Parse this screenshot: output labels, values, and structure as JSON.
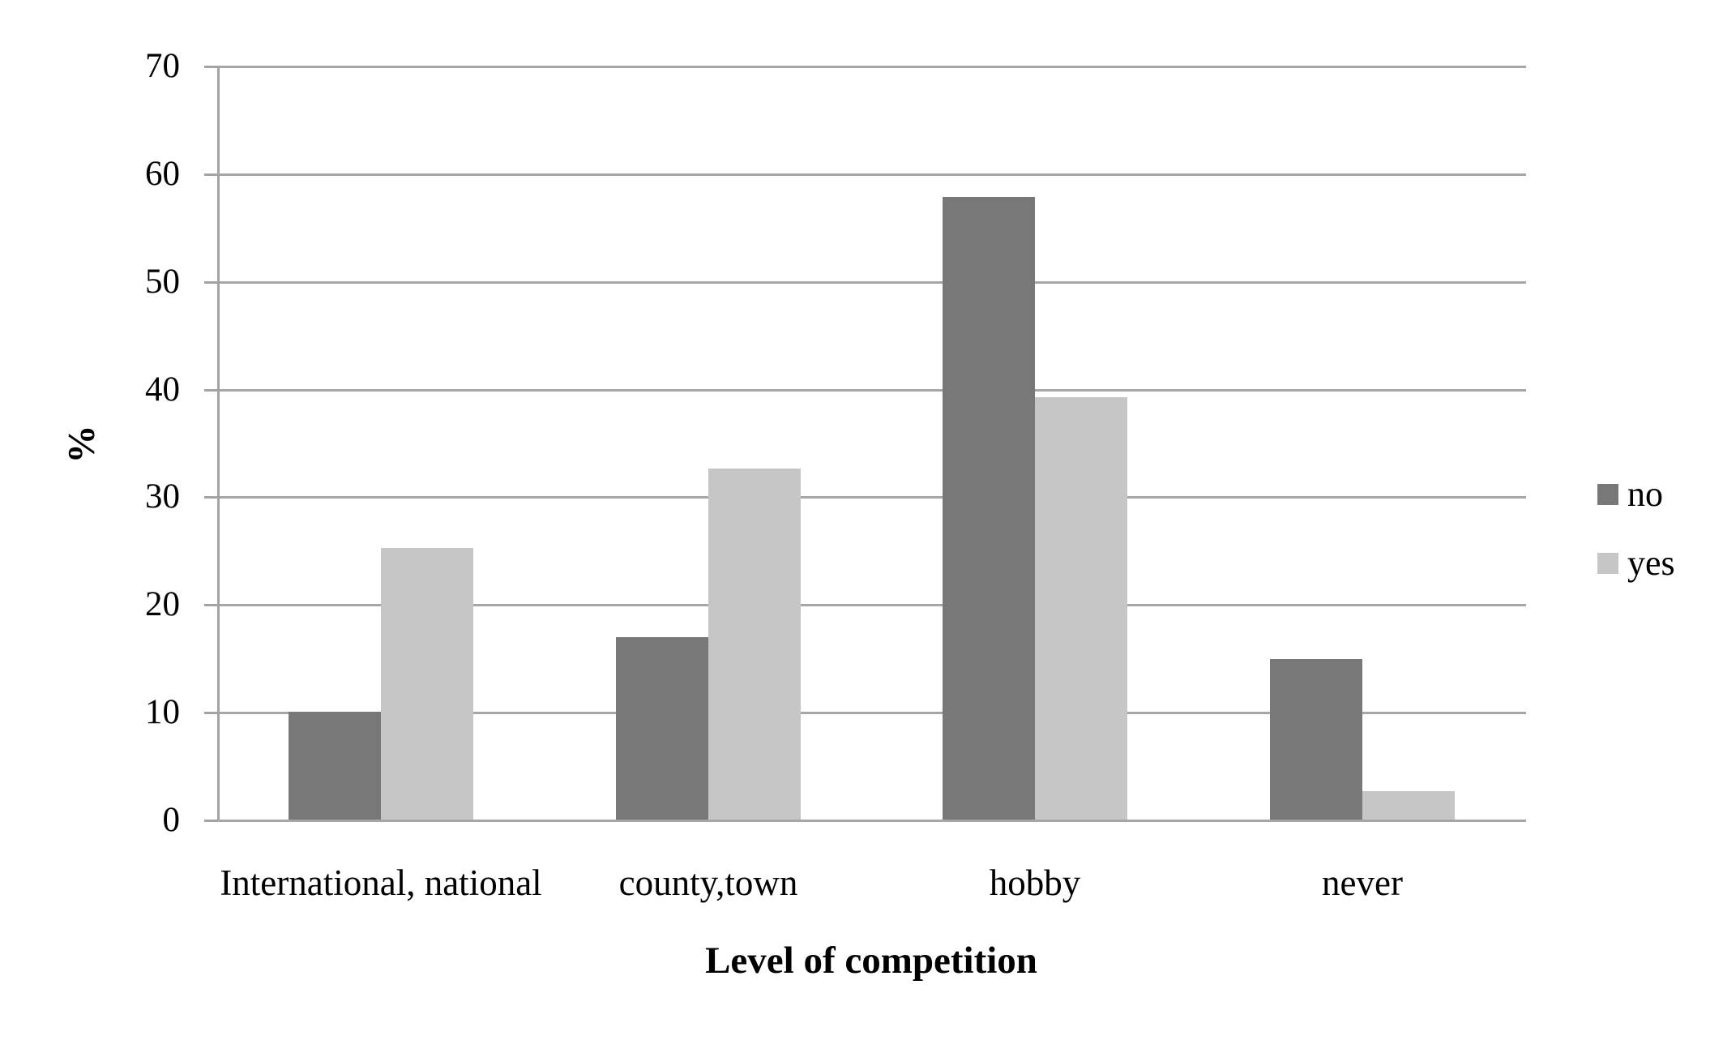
{
  "chart_data": {
    "type": "bar",
    "title": "",
    "categories": [
      "International, national",
      "county,town",
      "hobby",
      "never"
    ],
    "series": [
      {
        "name": "no",
        "color": "#787878",
        "values": [
          10.1,
          17.0,
          57.9,
          15.0
        ]
      },
      {
        "name": "yes",
        "color": "#c6c6c6",
        "values": [
          25.3,
          32.7,
          39.3,
          2.7
        ]
      }
    ],
    "xlabel": "Level of competition",
    "ylabel": "%",
    "ylim": [
      0,
      70
    ],
    "yticks": [
      0,
      10,
      20,
      30,
      40,
      50,
      60,
      70
    ],
    "grid": "horizontal-only",
    "legend_position": "right",
    "colors": {
      "gridline": "#a6a6a6",
      "axis": "#a3a3a3",
      "text": "#000000",
      "background": "#ffffff"
    }
  }
}
